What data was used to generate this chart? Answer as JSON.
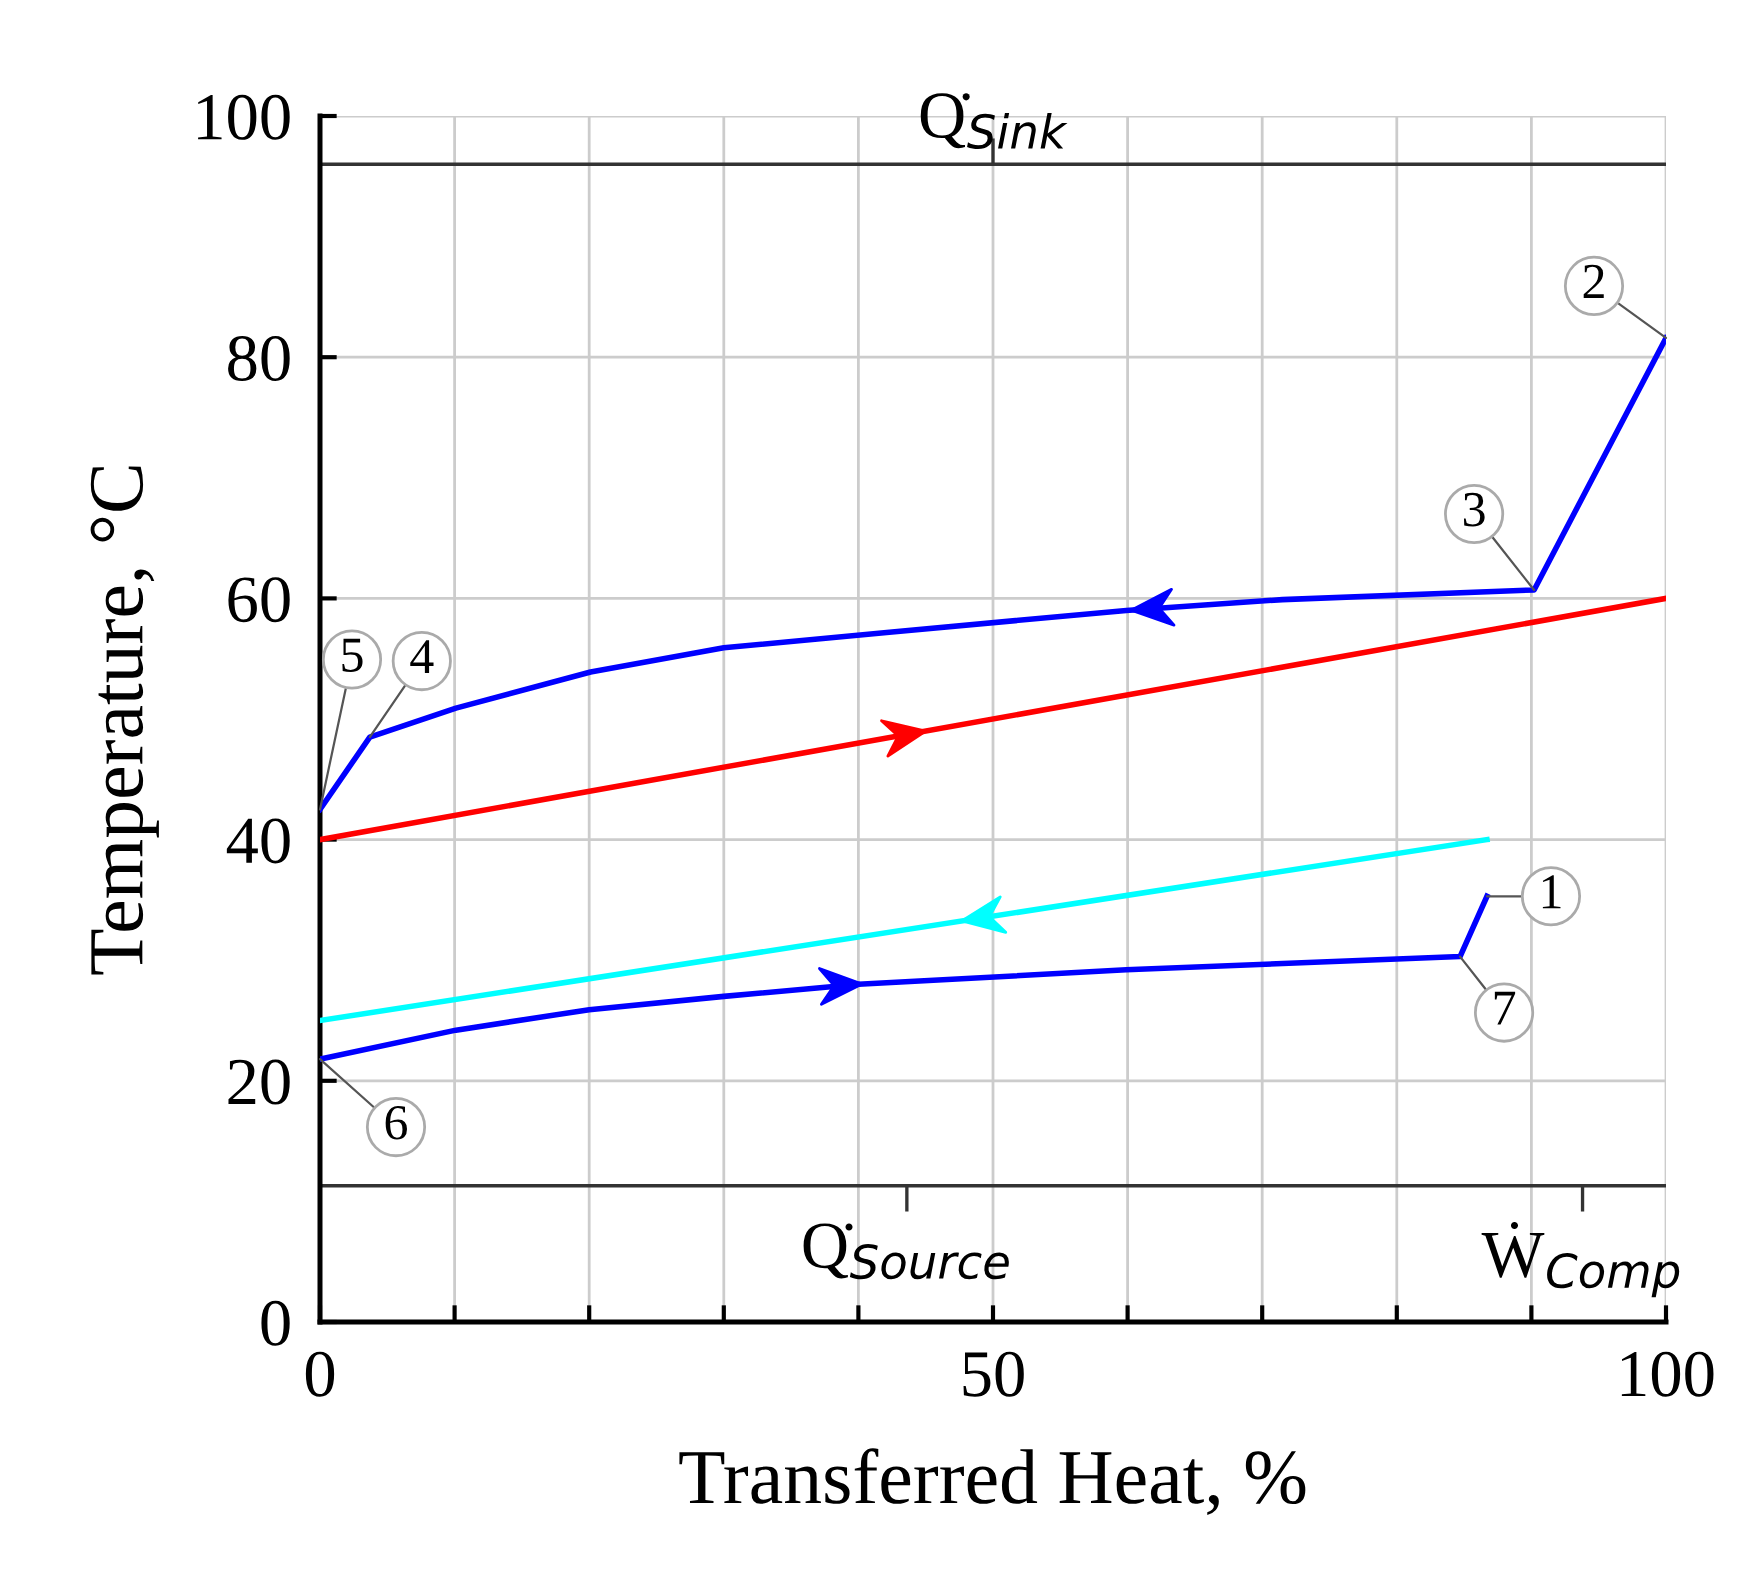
{
  "chart_data": {
    "type": "line",
    "xlabel": "Transferred Heat, %",
    "ylabel": "Temperature, °C",
    "xlim": [
      0,
      100
    ],
    "ylim": [
      0,
      100
    ],
    "xticks": [
      0,
      {
        "value": 10,
        "label": null
      },
      {
        "value": 20,
        "label": null
      },
      {
        "value": 30,
        "label": null
      },
      {
        "value": 40,
        "label": null
      },
      50,
      {
        "value": 60,
        "label": null
      },
      {
        "value": 70,
        "label": null
      },
      {
        "value": 80,
        "label": null
      },
      {
        "value": 90,
        "label": null
      },
      100
    ],
    "yticks": [
      0,
      20,
      40,
      60,
      80,
      100
    ],
    "grid": true,
    "line_style": "solid",
    "marker": "none",
    "series": [
      {
        "color": "#0000ff",
        "x": [
          100,
          90.2,
          71.5,
          59.9,
          42.3,
          30,
          20.1,
          10.1,
          3.7,
          0
        ],
        "values": [
          81.6,
          60.7,
          59.9,
          59.0,
          57.2,
          55.9,
          53.9,
          50.9,
          48.5,
          42.5
        ]
      },
      {
        "color": "#ff0000",
        "x": [
          0,
          100
        ],
        "values": [
          40,
          60
        ]
      },
      {
        "color": "#00ffff",
        "x": [
          86.7,
          0
        ],
        "values": [
          40,
          25
        ]
      },
      {
        "color": "#0000ff",
        "x": [
          0,
          10.1,
          20,
          30,
          40,
          59.9,
          80,
          84.7,
          86.7
        ],
        "values": [
          21.8,
          24.2,
          25.9,
          27,
          28,
          29.2,
          30.1,
          30.3,
          35.3
        ]
      }
    ],
    "ref_lines": [
      {
        "axis": "y",
        "value": 96,
        "label": null,
        "color": "#333333"
      },
      {
        "axis": "y",
        "value": 11.3,
        "label": null,
        "color": "#333333"
      }
    ],
    "annotations": [
      {
        "text": "Q̇$_{Sink}$",
        "x": 50,
        "y": 96
      },
      {
        "text": "Q̇$_{Source}$",
        "x": 43.6,
        "y": 11.3
      },
      {
        "text": "Ẇ$_{Comp}$",
        "x": 93.8,
        "y": 11.3
      },
      {
        "text": "1",
        "x": 86.7,
        "y": 35.3
      },
      {
        "text": "2",
        "x": 100,
        "y": 81.6
      },
      {
        "text": "3",
        "x": 90.2,
        "y": 60.7
      },
      {
        "text": "4",
        "x": 3.7,
        "y": 48.5
      },
      {
        "text": "5",
        "x": 0,
        "y": 42.5
      },
      {
        "text": "6",
        "x": 0,
        "y": 21.8
      },
      {
        "text": "7",
        "x": 84.7,
        "y": 30.3
      }
    ]
  }
}
